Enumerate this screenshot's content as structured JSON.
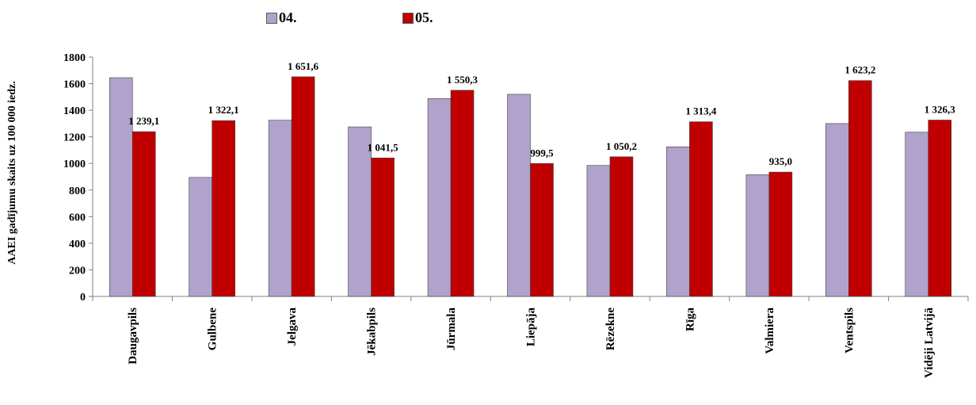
{
  "chart_data": {
    "type": "bar",
    "title": "",
    "xlabel": "",
    "ylabel": "AAEI gadījumu skaits uz 100 000 iedz.",
    "ylim": [
      0,
      1800
    ],
    "yticks": [
      "0",
      "200",
      "400",
      "600",
      "800",
      "1000",
      "1200",
      "1400",
      "1600",
      "1800"
    ],
    "categories": [
      "Daugavpils",
      "Gulbene",
      "Jelgava",
      "Jēkabpils",
      "Jūrmala",
      "Liepāja",
      "Rēzekne",
      "Rīga",
      "Valmiera",
      "Ventspils",
      "Vidēji Latvijā"
    ],
    "series": [
      {
        "name": "04.",
        "color": "#b0a2cb",
        "values": [
          1645,
          895,
          1325,
          1275,
          1488,
          1520,
          985,
          1125,
          915,
          1300,
          1235
        ],
        "labels": [
          "",
          "",
          "",
          "",
          "",
          "",
          "",
          "",
          "",
          "",
          ""
        ]
      },
      {
        "name": "05.",
        "color": "#c00000",
        "values": [
          1239.1,
          1322.1,
          1651.6,
          1041.5,
          1550.3,
          999.5,
          1050.2,
          1313.4,
          935.0,
          1623.2,
          1326.3
        ],
        "labels": [
          "1 239,1",
          "1 322,1",
          "1 651,6",
          "1 041,5",
          "1 550,3",
          "999,5",
          "1 050,2",
          "1 313,4",
          "935,0",
          "1 623,2",
          "1 326,3"
        ]
      }
    ],
    "grid": false,
    "legend_position": "top"
  }
}
